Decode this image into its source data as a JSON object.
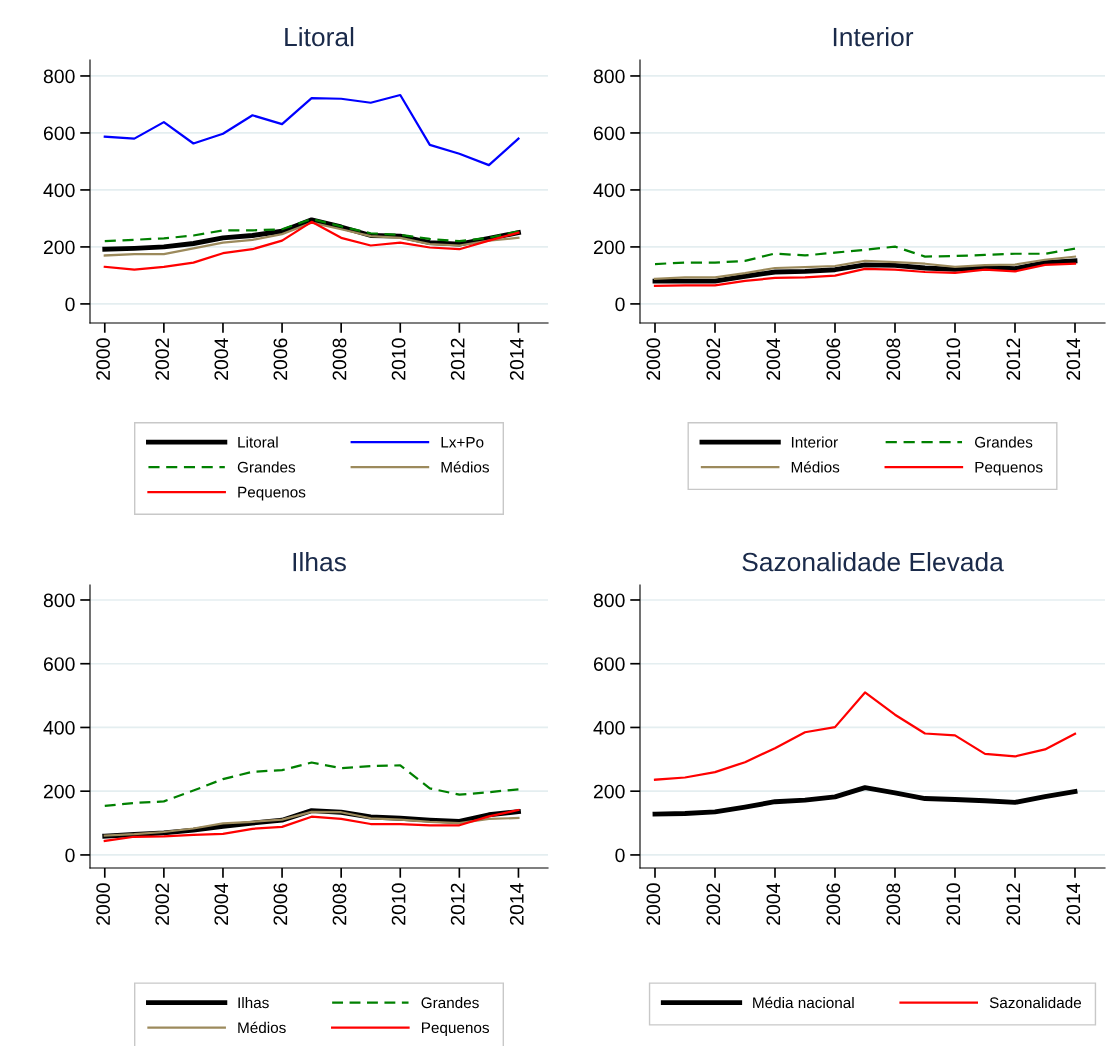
{
  "chart_data": [
    {
      "type": "line",
      "title": "Litoral",
      "x": [
        2000,
        2001,
        2002,
        2003,
        2004,
        2005,
        2006,
        2007,
        2008,
        2009,
        2010,
        2011,
        2012,
        2013,
        2014
      ],
      "xlim": [
        1999.5,
        2015.0
      ],
      "xticks": [
        2000,
        2002,
        2004,
        2006,
        2008,
        2010,
        2012,
        2014
      ],
      "ylim": [
        -67,
        856
      ],
      "yticks": [
        0,
        200,
        400,
        600,
        800
      ],
      "grid": "y",
      "legend": "bottom",
      "series": [
        {
          "name": "Litoral",
          "color": "#000000",
          "line_style": "solid",
          "values": [
            192,
            195,
            200,
            212,
            232,
            240,
            255,
            295,
            270,
            240,
            238,
            215,
            210,
            230,
            250
          ]
        },
        {
          "name": "Lx+Po",
          "color": "#0000ff",
          "line_style": "solid",
          "values": [
            587,
            580,
            638,
            563,
            597,
            662,
            631,
            722,
            720,
            706,
            733,
            558,
            527,
            487,
            580
          ]
        },
        {
          "name": "Grandes",
          "color": "#008000",
          "line_style": "dashed",
          "values": [
            220,
            225,
            230,
            240,
            258,
            258,
            262,
            298,
            272,
            248,
            242,
            228,
            220,
            232,
            255
          ]
        },
        {
          "name": "Médios",
          "color": "#9c8a5c",
          "line_style": "solid",
          "values": [
            170,
            175,
            175,
            195,
            215,
            225,
            245,
            285,
            262,
            238,
            232,
            210,
            205,
            222,
            232
          ]
        },
        {
          "name": "Pequenos",
          "color": "#ff0000",
          "line_style": "solid",
          "values": [
            130,
            120,
            130,
            145,
            178,
            192,
            222,
            288,
            232,
            205,
            215,
            198,
            192,
            222,
            250
          ]
        }
      ]
    },
    {
      "type": "line",
      "title": "Interior",
      "x": [
        2000,
        2001,
        2002,
        2003,
        2004,
        2005,
        2006,
        2007,
        2008,
        2009,
        2010,
        2011,
        2012,
        2013,
        2014
      ],
      "xlim": [
        1999.5,
        2015.0
      ],
      "xticks": [
        2000,
        2002,
        2004,
        2006,
        2008,
        2010,
        2012,
        2014
      ],
      "ylim": [
        -67,
        856
      ],
      "yticks": [
        0,
        200,
        400,
        600,
        800
      ],
      "grid": "y",
      "legend": "bottom",
      "series": [
        {
          "name": "Interior",
          "color": "#000000",
          "line_style": "solid",
          "values": [
            80,
            80,
            80,
            97,
            112,
            114,
            120,
            137,
            135,
            126,
            121,
            128,
            124,
            145,
            151
          ]
        },
        {
          "name": "Grandes",
          "color": "#008000",
          "line_style": "dashed",
          "values": [
            140,
            145,
            145,
            151,
            177,
            170,
            180,
            190,
            201,
            166,
            168,
            172,
            176,
            176,
            194
          ]
        },
        {
          "name": "Médios",
          "color": "#9c8a5c",
          "line_style": "solid",
          "values": [
            88,
            93,
            93,
            108,
            126,
            129,
            133,
            151,
            147,
            141,
            130,
            136,
            138,
            155,
            166
          ]
        },
        {
          "name": "Pequenos",
          "color": "#ff0000",
          "line_style": "solid",
          "values": [
            63,
            65,
            65,
            81,
            91,
            93,
            99,
            123,
            120,
            112,
            109,
            120,
            114,
            137,
            141
          ]
        }
      ]
    },
    {
      "type": "line",
      "title": "Ilhas",
      "x": [
        2000,
        2001,
        2002,
        2003,
        2004,
        2005,
        2006,
        2007,
        2008,
        2009,
        2010,
        2011,
        2012,
        2013,
        2014
      ],
      "xlim": [
        1999.5,
        2015.0
      ],
      "xticks": [
        2000,
        2002,
        2004,
        2006,
        2008,
        2010,
        2012,
        2014
      ],
      "ylim": [
        -41,
        847
      ],
      "yticks": [
        0,
        200,
        400,
        600,
        800
      ],
      "grid": "y",
      "legend": "bottom",
      "series": [
        {
          "name": "Ilhas",
          "color": "#000000",
          "line_style": "solid",
          "values": [
            59,
            64,
            69,
            78,
            90,
            100,
            109,
            139,
            134,
            119,
            115,
            109,
            105,
            126,
            136
          ]
        },
        {
          "name": "Grandes",
          "color": "#008000",
          "line_style": "dashed",
          "values": [
            154,
            163,
            168,
            202,
            238,
            261,
            266,
            290,
            272,
            279,
            281,
            209,
            189,
            197,
            206
          ]
        },
        {
          "name": "Médios",
          "color": "#9c8a5c",
          "line_style": "solid",
          "values": [
            61,
            65,
            72,
            83,
            99,
            104,
            111,
            135,
            134,
            115,
            111,
            104,
            100,
            113,
            116
          ]
        },
        {
          "name": "Pequenos",
          "color": "#ff0000",
          "line_style": "solid",
          "values": [
            44,
            57,
            58,
            63,
            66,
            82,
            88,
            120,
            113,
            97,
            97,
            93,
            93,
            121,
            141
          ]
        }
      ]
    },
    {
      "type": "line",
      "title": "Sazonalidade Elevada",
      "x": [
        2000,
        2001,
        2002,
        2003,
        2004,
        2005,
        2006,
        2007,
        2008,
        2009,
        2010,
        2011,
        2012,
        2013,
        2014
      ],
      "xlim": [
        1999.5,
        2015.0
      ],
      "xticks": [
        2000,
        2002,
        2004,
        2006,
        2008,
        2010,
        2012,
        2014
      ],
      "ylim": [
        -41,
        847
      ],
      "yticks": [
        0,
        200,
        400,
        600,
        800
      ],
      "grid": "y",
      "legend": "bottom",
      "series": [
        {
          "name": "Média nacional",
          "color": "#000000",
          "line_style": "solid",
          "values": [
            128,
            130,
            135,
            150,
            167,
            172,
            182,
            211,
            195,
            177,
            174,
            170,
            165,
            183,
            199
          ]
        },
        {
          "name": "Sazonalidade",
          "color": "#ff0000",
          "line_style": "solid",
          "values": [
            236,
            243,
            260,
            291,
            335,
            385,
            401,
            510,
            440,
            381,
            375,
            317,
            309,
            331,
            380
          ]
        }
      ]
    }
  ]
}
